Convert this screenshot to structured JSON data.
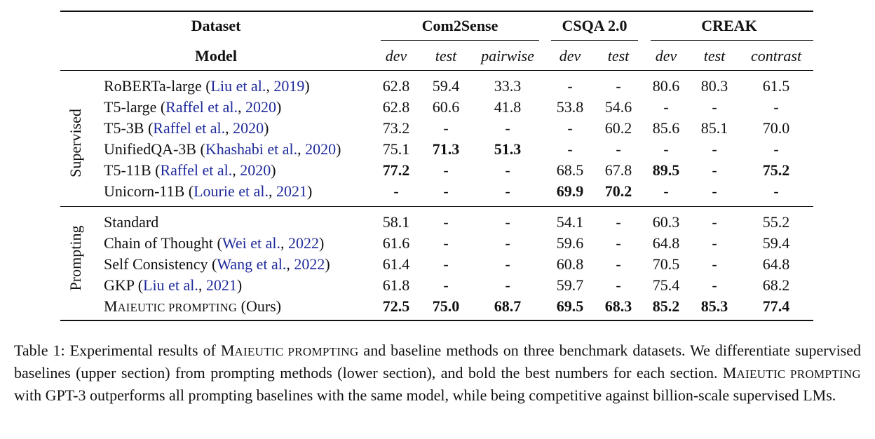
{
  "table": {
    "header": {
      "dataset_label": "Dataset",
      "model_label": "Model",
      "groups": [
        {
          "name": "Com2Sense",
          "cols": [
            "dev",
            "test",
            "pairwise"
          ]
        },
        {
          "name": "CSQA 2.0",
          "cols": [
            "dev",
            "test"
          ]
        },
        {
          "name": "CREAK",
          "cols": [
            "dev",
            "test",
            "contrast"
          ]
        }
      ]
    },
    "sections": [
      {
        "label": "Supervised",
        "rows": [
          {
            "model": "RoBERTa-large",
            "cite": "Liu et al., 2019",
            "values": [
              "62.8",
              "59.4",
              "33.3",
              "-",
              "-",
              "80.6",
              "80.3",
              "61.5"
            ],
            "bold": []
          },
          {
            "model": "T5-large",
            "cite": "Raffel et al., 2020",
            "values": [
              "62.8",
              "60.6",
              "41.8",
              "53.8",
              "54.6",
              "-",
              "-",
              "-"
            ],
            "bold": []
          },
          {
            "model": "T5-3B",
            "cite": "Raffel et al., 2020",
            "values": [
              "73.2",
              "-",
              "-",
              "-",
              "60.2",
              "85.6",
              "85.1",
              "70.0"
            ],
            "bold": []
          },
          {
            "model": "UnifiedQA-3B",
            "cite": "Khashabi et al., 2020",
            "values": [
              "75.1",
              "71.3",
              "51.3",
              "-",
              "-",
              "-",
              "-",
              "-"
            ],
            "bold": [
              1,
              2
            ]
          },
          {
            "model": "T5-11B",
            "cite": "Raffel et al., 2020",
            "values": [
              "77.2",
              "-",
              "-",
              "68.5",
              "67.8",
              "89.5",
              "-",
              "75.2"
            ],
            "bold": [
              0,
              5,
              7
            ]
          },
          {
            "model": "Unicorn-11B",
            "cite": "Lourie et al., 2021",
            "values": [
              "-",
              "-",
              "-",
              "69.9",
              "70.2",
              "-",
              "-",
              "-"
            ],
            "bold": [
              3,
              4
            ]
          }
        ]
      },
      {
        "label": "Prompting",
        "rows": [
          {
            "model": "Standard",
            "cite": "",
            "values": [
              "58.1",
              "-",
              "-",
              "54.1",
              "-",
              "60.3",
              "-",
              "55.2"
            ],
            "bold": []
          },
          {
            "model": "Chain of Thought",
            "cite": "Wei et al., 2022",
            "values": [
              "61.6",
              "-",
              "-",
              "59.6",
              "-",
              "64.8",
              "-",
              "59.4"
            ],
            "bold": []
          },
          {
            "model": "Self Consistency",
            "cite": "Wang et al., 2022",
            "values": [
              "61.4",
              "-",
              "-",
              "60.8",
              "-",
              "70.5",
              "-",
              "64.8"
            ],
            "bold": []
          },
          {
            "model": "GKP",
            "cite": "Liu et al., 2021",
            "values": [
              "61.8",
              "-",
              "-",
              "59.7",
              "-",
              "75.4",
              "-",
              "68.2"
            ],
            "bold": []
          },
          {
            "model": "MAIEUTIC PROMPTING",
            "model_suffix": "(Ours)",
            "cite": "",
            "values": [
              "72.5",
              "75.0",
              "68.7",
              "69.5",
              "68.3",
              "85.2",
              "85.3",
              "77.4"
            ],
            "bold": [
              0,
              1,
              2,
              3,
              4,
              5,
              6,
              7
            ]
          }
        ]
      }
    ]
  },
  "caption": {
    "label": "Table 1:",
    "text": "Experimental results of MAIEUTIC PROMPTING and baseline methods on three benchmark datasets. We differentiate supervised baselines (upper section) from prompting methods (lower section), and bold the best numbers for each section. MAIEUTIC PROMPTING with GPT-3 outperforms all prompting baselines with the same model, while being competitive against billion-scale supervised LMs."
  },
  "colors": {
    "citation": "#1f2a9c",
    "text": "#111111"
  }
}
